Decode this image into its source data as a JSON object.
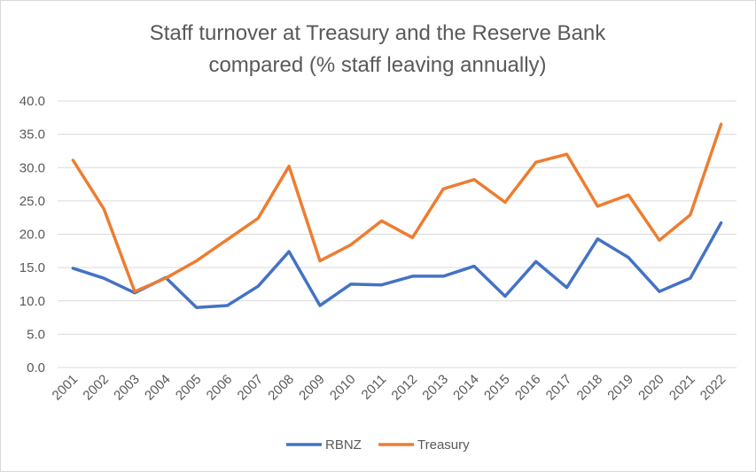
{
  "chart_data": {
    "type": "line",
    "title": [
      "Staff turnover at Treasury and the Reserve Bank",
      "compared (% staff leaving annually)"
    ],
    "xlabel": "",
    "ylabel": "",
    "ylim": [
      0,
      40
    ],
    "y_ticks": [
      "0.0",
      "5.0",
      "10.0",
      "15.0",
      "20.0",
      "25.0",
      "30.0",
      "35.0",
      "40.0"
    ],
    "categories": [
      "2001",
      "2002",
      "2003",
      "2004",
      "2005",
      "2006",
      "2007",
      "2008",
      "2009",
      "2010",
      "2011",
      "2012",
      "2013",
      "2014",
      "2015",
      "2016",
      "2017",
      "2018",
      "2019",
      "2020",
      "2021",
      "2022"
    ],
    "series": [
      {
        "name": "RBNZ",
        "color": "#4472c4",
        "values": [
          14.9,
          13.4,
          11.2,
          13.5,
          9.0,
          9.3,
          12.2,
          17.4,
          9.3,
          12.5,
          12.4,
          13.7,
          13.7,
          15.2,
          10.7,
          15.9,
          12.0,
          19.3,
          16.5,
          11.4,
          13.4,
          21.7
        ]
      },
      {
        "name": "Treasury",
        "color": "#ed7d31",
        "values": [
          31.1,
          23.8,
          11.4,
          13.4,
          16.0,
          19.2,
          22.4,
          30.2,
          16.0,
          18.4,
          22.0,
          19.5,
          26.8,
          28.2,
          24.8,
          30.8,
          32.0,
          24.2,
          25.9,
          19.1,
          22.9,
          36.5
        ]
      }
    ],
    "grid": true,
    "legend_position": "bottom"
  }
}
